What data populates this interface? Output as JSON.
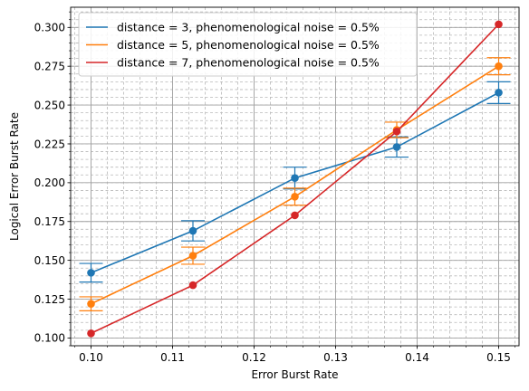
{
  "chart_data": {
    "type": "line",
    "title": "",
    "xlabel": "Error Burst Rate",
    "ylabel": "Logical Error Burst Rate",
    "xlim": [
      0.0975,
      0.1525
    ],
    "ylim": [
      0.095,
      0.313
    ],
    "x_ticks": [
      0.1,
      0.11,
      0.12,
      0.13,
      0.14,
      0.15
    ],
    "x_tick_labels": [
      "0.10",
      "0.11",
      "0.12",
      "0.13",
      "0.14",
      "0.15"
    ],
    "y_ticks": [
      0.1,
      0.125,
      0.15,
      0.175,
      0.2,
      0.225,
      0.25,
      0.275,
      0.3
    ],
    "y_tick_labels": [
      "0.100",
      "0.125",
      "0.150",
      "0.175",
      "0.200",
      "0.225",
      "0.250",
      "0.275",
      "0.300"
    ],
    "grid": "major-and-minor",
    "legend_position": "top-left",
    "x": [
      0.1,
      0.1125,
      0.125,
      0.1375,
      0.15
    ],
    "series": [
      {
        "name": "distance = 3, phenomenological noise = 0.5%",
        "color": "#1f77b4",
        "values": [
          0.142,
          0.169,
          0.203,
          0.223,
          0.258
        ],
        "error": [
          0.006,
          0.0065,
          0.007,
          0.0065,
          0.007
        ]
      },
      {
        "name": "distance = 5, phenomenological noise = 0.5%",
        "color": "#ff7f0e",
        "values": [
          0.122,
          0.153,
          0.191,
          0.234,
          0.275
        ],
        "error": [
          0.0045,
          0.0055,
          0.0055,
          0.005,
          0.0055
        ]
      },
      {
        "name": "distance = 7, phenomenological noise = 0.5%",
        "color": "#d62728",
        "values": [
          0.103,
          0.134,
          0.179,
          0.233,
          0.302
        ],
        "error": [
          0,
          0,
          0,
          0,
          0
        ]
      }
    ]
  }
}
